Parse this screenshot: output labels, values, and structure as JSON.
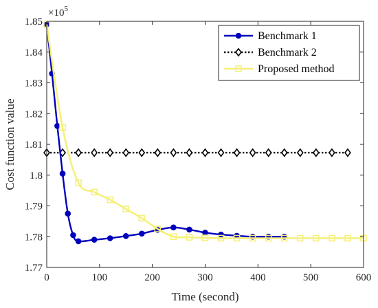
{
  "chart_data": {
    "type": "line",
    "xlabel": "Time (second)",
    "ylabel": "Cost function value",
    "y_multiplier_base": "×10",
    "y_multiplier_exp": "5",
    "xlim": [
      0,
      600
    ],
    "ylim": [
      1.77,
      1.85
    ],
    "x_ticks": [
      0,
      100,
      200,
      300,
      400,
      500,
      600
    ],
    "x_tick_labels": [
      "0",
      "100",
      "200",
      "300",
      "400",
      "500",
      "600"
    ],
    "y_ticks": [
      1.77,
      1.78,
      1.79,
      1.8,
      1.81,
      1.82,
      1.83,
      1.84,
      1.85
    ],
    "y_tick_labels": [
      "1.77",
      "1.78",
      "1.79",
      "1.8",
      "1.81",
      "1.82",
      "1.83",
      "1.84",
      "1.85"
    ],
    "grid": false,
    "legend_position": "top-right",
    "series": [
      {
        "name": "Benchmark 1",
        "color": "#0000bb",
        "marker": "filled-circle",
        "line_style": "solid",
        "x": [
          0,
          10,
          20,
          30,
          40,
          50,
          60,
          90,
          120,
          150,
          180,
          210,
          240,
          270,
          300,
          330,
          360,
          390,
          420,
          450
        ],
        "y": [
          1.849,
          1.833,
          1.816,
          1.8005,
          1.7875,
          1.7805,
          1.7785,
          1.779,
          1.7795,
          1.7802,
          1.781,
          1.7822,
          1.783,
          1.7823,
          1.7813,
          1.7807,
          1.7803,
          1.78,
          1.78,
          1.78
        ]
      },
      {
        "name": "Benchmark 2",
        "color": "#000000",
        "marker": "open-diamond",
        "line_style": "dotted",
        "x": [
          0,
          30,
          60,
          90,
          120,
          150,
          180,
          210,
          240,
          270,
          300,
          330,
          360,
          390,
          420,
          450,
          480,
          510,
          540,
          570
        ],
        "y": [
          1.8073,
          1.8073,
          1.8073,
          1.8073,
          1.8073,
          1.8073,
          1.8073,
          1.8073,
          1.8073,
          1.8073,
          1.8073,
          1.8073,
          1.8073,
          1.8073,
          1.8073,
          1.8073,
          1.8073,
          1.8073,
          1.8073,
          1.8073
        ]
      },
      {
        "name": "Proposed method",
        "color": "#f5f07a",
        "marker": "open-square",
        "line_style": "solid",
        "x": [
          0,
          30,
          60,
          90,
          120,
          150,
          180,
          210,
          240,
          270,
          300,
          330,
          360,
          390,
          420,
          450,
          480,
          510,
          540,
          570,
          600
        ],
        "y": [
          1.849,
          1.8155,
          1.7975,
          1.7945,
          1.792,
          1.789,
          1.786,
          1.7825,
          1.78,
          1.7798,
          1.7796,
          1.7795,
          1.7795,
          1.7795,
          1.7795,
          1.7795,
          1.7795,
          1.7795,
          1.7795,
          1.7795,
          1.7795
        ]
      }
    ]
  }
}
